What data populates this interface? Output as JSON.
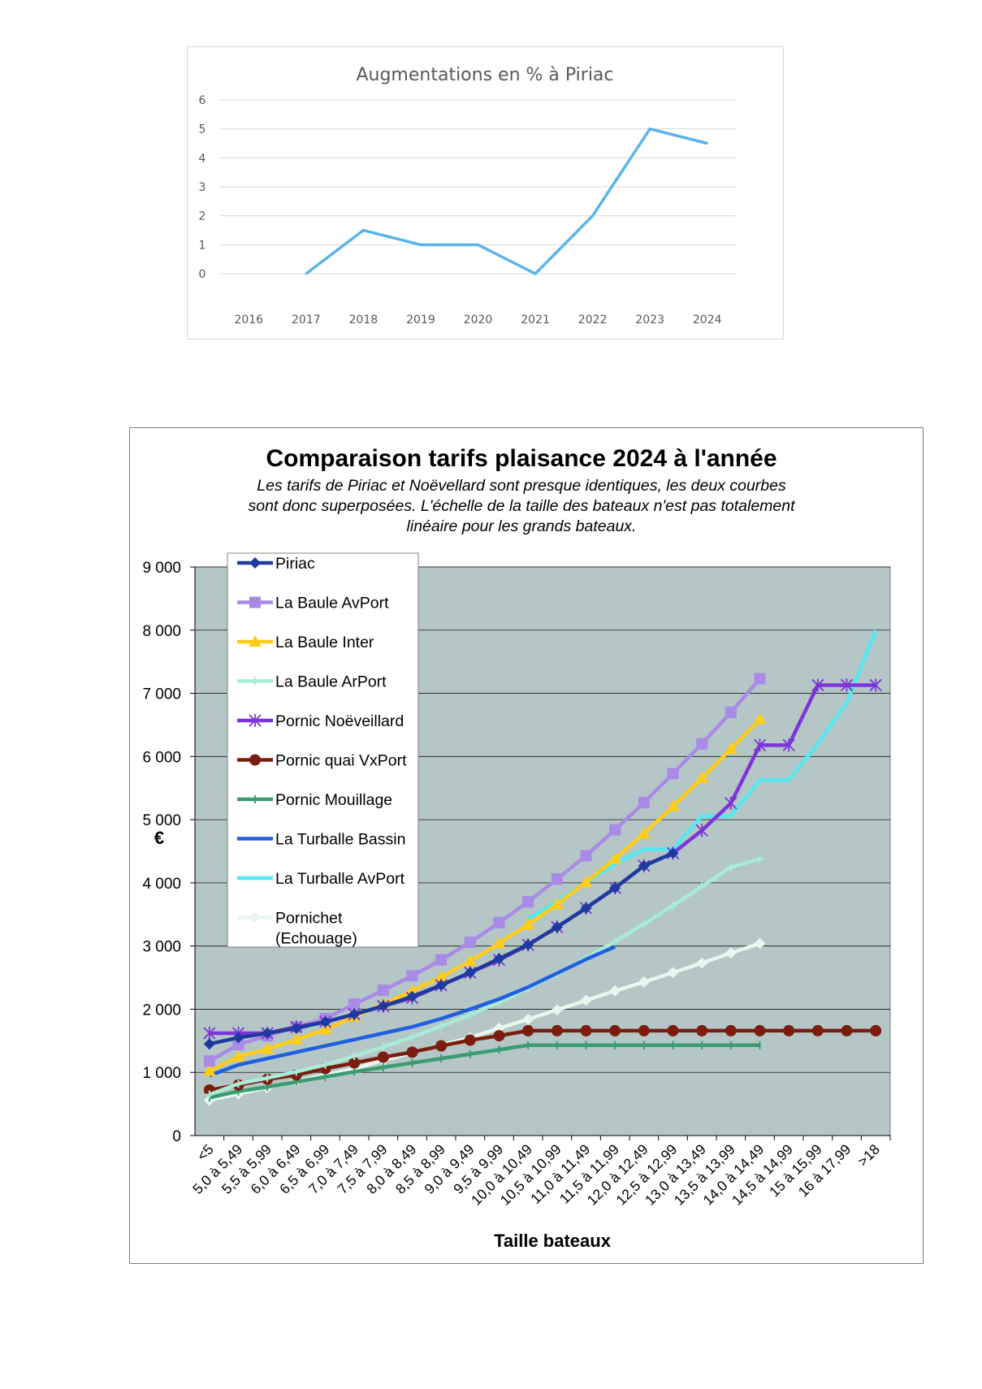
{
  "chart_data": [
    {
      "type": "line",
      "title": "Augmentations en % à Piriac",
      "categories": [
        "2016",
        "2017",
        "2018",
        "2019",
        "2020",
        "2021",
        "2022",
        "2023",
        "2024"
      ],
      "series": [
        {
          "name": "Augmentations",
          "values": [
            null,
            0,
            1.5,
            1,
            1,
            0,
            2,
            5,
            4.5
          ],
          "color": "#5bb4e8"
        }
      ],
      "ylim": [
        0,
        6
      ],
      "yticks": [
        "0",
        "1",
        "2",
        "3",
        "4",
        "5",
        "6"
      ],
      "grid": true,
      "xlabel": "",
      "ylabel": ""
    },
    {
      "type": "line",
      "title": "Comparaison tarifs plaisance 2024 à l'année",
      "subtitle_lines": [
        "Les tarifs de Piriac et Noëvellard sont presque identiques, les deux courbes",
        "sont donc superposées. L'échelle de la taille des bateaux n'est pas totalement",
        "linéaire pour les grands bateaux."
      ],
      "xlabel": "Taille bateaux",
      "ylabel": "€",
      "ylim": [
        0,
        9000
      ],
      "yticks": [
        "0",
        "1 000",
        "2 000",
        "3 000",
        "4 000",
        "5 000",
        "6 000",
        "7 000",
        "8 000",
        "9 000"
      ],
      "categories": [
        "<5",
        "5,0 à 5,49",
        "5,5 à 5,99",
        "6,0 à 6,49",
        "6,5 à 6,99",
        "7,0 à 7,49",
        "7,5 à 7,99",
        "8,0 à 8,49",
        "8,5 à 8,99",
        "9,0 à 9,49",
        "9,5 à 9,99",
        "10,0 à 10,49",
        "10,5 à 10,99",
        "11,0 à 11,49",
        "11,5 à 11,99",
        "12,0 à 12,49",
        "12,5 à 12,99",
        "13,0 à 13,49",
        "13,5 à 13,99",
        "14,0 à 14,49",
        "14,5 à 14,99",
        "15 à 15,99",
        "16 à 17,99",
        ">18"
      ],
      "legend_position": "top-left",
      "grid": true,
      "series": [
        {
          "name": "Piriac",
          "color": "#1f3a9e",
          "marker": "diamond",
          "values": [
            1450,
            1550,
            1620,
            1700,
            1800,
            1920,
            2050,
            2200,
            2380,
            2580,
            2800,
            3020,
            3300,
            3600,
            3920,
            4270,
            4470,
            null,
            null,
            null,
            null,
            null,
            null,
            null
          ]
        },
        {
          "name": "La Baule AvPort",
          "color": "#a98ae6",
          "marker": "square",
          "values": [
            1180,
            1440,
            1580,
            1720,
            1850,
            2080,
            2300,
            2530,
            2780,
            3060,
            3370,
            3700,
            4060,
            4430,
            4840,
            5270,
            5730,
            6200,
            6700,
            7230,
            null,
            null,
            null,
            null
          ]
        },
        {
          "name": "La Baule Inter",
          "color": "#ffcc1a",
          "marker": "triangle",
          "values": [
            1020,
            1250,
            1370,
            1520,
            1680,
            1880,
            2080,
            2290,
            2510,
            2760,
            3040,
            3340,
            3660,
            4010,
            4380,
            4780,
            5210,
            5660,
            6120,
            6590,
            null,
            null,
            null,
            null
          ]
        },
        {
          "name": "La Baule ArPort",
          "color": "#a8ecd6",
          "marker": "cross",
          "values": [
            650,
            820,
            910,
            1010,
            1120,
            1260,
            1400,
            1560,
            1730,
            1910,
            2110,
            2330,
            2560,
            2810,
            3070,
            3350,
            3640,
            3940,
            4250,
            4380,
            null,
            null,
            null,
            null
          ]
        },
        {
          "name": "Pornic Noëveillard",
          "color": "#7d35d8",
          "marker": "star",
          "values": [
            1620,
            1620,
            1620,
            1720,
            1800,
            1920,
            2050,
            2180,
            2380,
            2580,
            2780,
            3020,
            3300,
            3600,
            3920,
            4270,
            4470,
            4830,
            5260,
            6180,
            6180,
            7130,
            7130,
            7130
          ]
        },
        {
          "name": "Pornic quai VxPort",
          "color": "#7a1d0e",
          "marker": "circle",
          "values": [
            720,
            800,
            890,
            960,
            1060,
            1150,
            1240,
            1320,
            1420,
            1510,
            1580,
            1660,
            1660,
            1660,
            1660,
            1660,
            1660,
            1660,
            1660,
            1660,
            1660,
            1660,
            1660,
            1660
          ]
        },
        {
          "name": "Pornic Mouillage",
          "color": "#3a9c71",
          "marker": "tick",
          "values": [
            600,
            700,
            770,
            850,
            930,
            1010,
            1080,
            1150,
            1220,
            1290,
            1360,
            1430,
            1430,
            1430,
            1430,
            1430,
            1430,
            1430,
            1430,
            1430,
            null,
            null,
            null,
            null
          ]
        },
        {
          "name": "La Turballe Bassin",
          "color": "#1f5fe0",
          "marker": "none",
          "values": [
            950,
            1120,
            1220,
            1320,
            1420,
            1520,
            1620,
            1720,
            1850,
            2000,
            2160,
            2350,
            2570,
            2790,
            2990,
            null,
            null,
            null,
            null,
            null,
            null,
            null,
            null,
            null
          ]
        },
        {
          "name": "La Turballe AvPort",
          "color": "#55e8f0",
          "marker": "none",
          "values": [
            null,
            null,
            null,
            null,
            null,
            null,
            null,
            null,
            null,
            null,
            null,
            3430,
            3700,
            4000,
            4300,
            4530,
            4530,
            5060,
            5060,
            5630,
            5630,
            6200,
            6850,
            8000
          ]
        },
        {
          "name": "Pornichet (Echouage)",
          "legend_lines": [
            "Pornichet",
            "(Echouage)"
          ],
          "color": "#e8f6ee",
          "marker": "diamond",
          "values": [
            560,
            660,
            760,
            860,
            960,
            1060,
            1190,
            1310,
            1430,
            1550,
            1700,
            1840,
            1990,
            2140,
            2290,
            2430,
            2580,
            2730,
            2890,
            3040,
            null,
            null,
            null,
            null
          ]
        }
      ]
    }
  ]
}
